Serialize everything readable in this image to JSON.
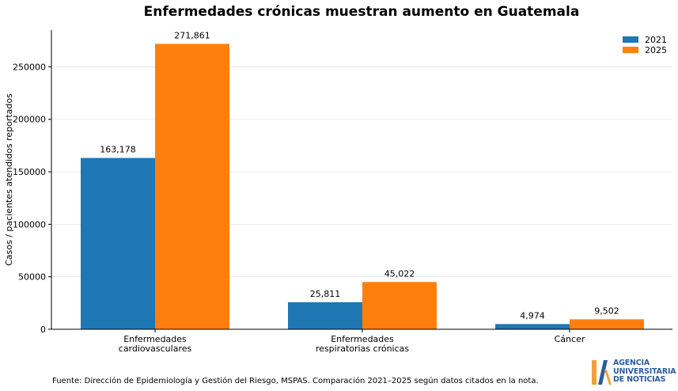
{
  "chart_data": {
    "type": "bar",
    "title": "Enfermedades crónicas muestran aumento en Guatemala",
    "ylabel": "Casos / pacientes atendidos reportados",
    "xlabel": "",
    "categories": [
      [
        "Enfermedades",
        "cardiovasculares"
      ],
      [
        "Enfermedades",
        "respiratorias crónicas"
      ],
      [
        "Cáncer"
      ]
    ],
    "series": [
      {
        "name": "2021",
        "color": "#1f77b4",
        "values": [
          163178,
          25811,
          4974
        ],
        "labels": [
          "163,178",
          "25,811",
          "4,974"
        ]
      },
      {
        "name": "2025",
        "color": "#ff7f0e",
        "values": [
          271861,
          45022,
          9502
        ],
        "labels": [
          "271,861",
          "45,022",
          "9,502"
        ]
      }
    ],
    "ylim": [
      0,
      285000
    ],
    "yticks": [
      0,
      50000,
      100000,
      150000,
      200000,
      250000
    ],
    "ytick_labels": [
      "0",
      "50000",
      "100000",
      "150000",
      "200000",
      "250000"
    ],
    "grid": "horizontal",
    "legend_position": "top-right"
  },
  "source": "Fuente: Dirección de Epidemiología y Gestión del Riesgo, MSPAS. Comparación 2021–2025 según datos citados en la nota.",
  "logo": {
    "line1": "AGENCIA",
    "line2": "UNIVERSITARIA",
    "line3": "DE NOTICIAS",
    "color": "#2b5e9e",
    "accent": "#f0a13a"
  }
}
